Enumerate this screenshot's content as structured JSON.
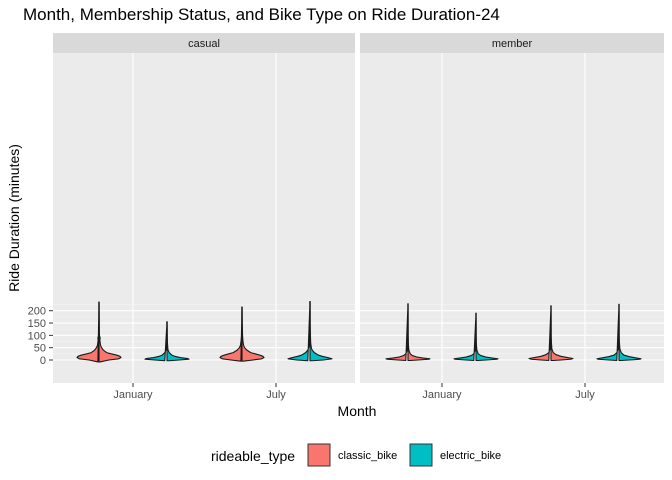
{
  "chart_data": {
    "type": "violin",
    "title": "Month, Membership Status, and Bike Type on Ride Duration-24",
    "xlabel": "Month",
    "ylabel": "Ride Duration (minutes)",
    "ylim": [
      -10,
      250
    ],
    "yticks": [
      0,
      50,
      100,
      150,
      200
    ],
    "categories": [
      "January",
      "July"
    ],
    "facets": [
      "casual",
      "member"
    ],
    "grid": true,
    "legend": {
      "title": "rideable_type",
      "position": "bottom",
      "entries": [
        {
          "label": "classic_bike",
          "color": "#F8766D"
        },
        {
          "label": "electric_bike",
          "color": "#00BFC4"
        }
      ]
    },
    "violins": [
      {
        "facet": "casual",
        "month": "January",
        "type": "classic_bike",
        "min": -8,
        "max": 235,
        "profile": [
          [
            -8,
            0.05
          ],
          [
            0,
            0.45
          ],
          [
            5,
            0.9
          ],
          [
            10,
            1.0
          ],
          [
            15,
            0.95
          ],
          [
            20,
            0.8
          ],
          [
            25,
            0.55
          ],
          [
            30,
            0.35
          ],
          [
            40,
            0.2
          ],
          [
            50,
            0.12
          ],
          [
            60,
            0.07
          ],
          [
            80,
            0.04
          ],
          [
            90,
            0.05
          ],
          [
            100,
            0.02
          ],
          [
            150,
            0.015
          ],
          [
            200,
            0.012
          ],
          [
            235,
            0.01
          ]
        ]
      },
      {
        "facet": "casual",
        "month": "January",
        "type": "electric_bike",
        "min": -3,
        "max": 155,
        "profile": [
          [
            -3,
            0.1
          ],
          [
            0,
            0.55
          ],
          [
            3,
            1.0
          ],
          [
            6,
            0.95
          ],
          [
            10,
            0.6
          ],
          [
            15,
            0.35
          ],
          [
            20,
            0.22
          ],
          [
            30,
            0.1
          ],
          [
            40,
            0.05
          ],
          [
            50,
            0.035
          ],
          [
            70,
            0.02
          ],
          [
            100,
            0.015
          ],
          [
            155,
            0.01
          ]
        ]
      },
      {
        "facet": "casual",
        "month": "July",
        "type": "classic_bike",
        "min": -5,
        "max": 215,
        "profile": [
          [
            -5,
            0.05
          ],
          [
            0,
            0.5
          ],
          [
            5,
            0.9
          ],
          [
            10,
            1.0
          ],
          [
            15,
            0.95
          ],
          [
            20,
            0.8
          ],
          [
            25,
            0.6
          ],
          [
            30,
            0.4
          ],
          [
            40,
            0.22
          ],
          [
            50,
            0.12
          ],
          [
            60,
            0.07
          ],
          [
            80,
            0.04
          ],
          [
            100,
            0.025
          ],
          [
            150,
            0.015
          ],
          [
            215,
            0.01
          ]
        ]
      },
      {
        "facet": "casual",
        "month": "July",
        "type": "electric_bike",
        "min": -3,
        "max": 237,
        "profile": [
          [
            -3,
            0.1
          ],
          [
            0,
            0.6
          ],
          [
            5,
            1.0
          ],
          [
            10,
            0.8
          ],
          [
            15,
            0.55
          ],
          [
            20,
            0.38
          ],
          [
            30,
            0.2
          ],
          [
            40,
            0.1
          ],
          [
            50,
            0.06
          ],
          [
            70,
            0.03
          ],
          [
            100,
            0.02
          ],
          [
            150,
            0.012
          ],
          [
            237,
            0.01
          ]
        ]
      },
      {
        "facet": "member",
        "month": "January",
        "type": "classic_bike",
        "min": -2,
        "max": 228,
        "profile": [
          [
            -2,
            0.1
          ],
          [
            0,
            0.45
          ],
          [
            3,
            0.95
          ],
          [
            5,
            1.0
          ],
          [
            8,
            0.7
          ],
          [
            12,
            0.4
          ],
          [
            18,
            0.2
          ],
          [
            25,
            0.1
          ],
          [
            40,
            0.04
          ],
          [
            60,
            0.02
          ],
          [
            100,
            0.012
          ],
          [
            228,
            0.008
          ]
        ]
      },
      {
        "facet": "member",
        "month": "January",
        "type": "electric_bike",
        "min": -2,
        "max": 190,
        "profile": [
          [
            -2,
            0.1
          ],
          [
            0,
            0.45
          ],
          [
            3,
            0.95
          ],
          [
            5,
            1.0
          ],
          [
            8,
            0.75
          ],
          [
            12,
            0.45
          ],
          [
            18,
            0.22
          ],
          [
            25,
            0.1
          ],
          [
            40,
            0.04
          ],
          [
            60,
            0.02
          ],
          [
            100,
            0.012
          ],
          [
            190,
            0.008
          ]
        ]
      },
      {
        "facet": "member",
        "month": "July",
        "type": "classic_bike",
        "min": -2,
        "max": 220,
        "profile": [
          [
            -2,
            0.1
          ],
          [
            0,
            0.45
          ],
          [
            3,
            0.9
          ],
          [
            6,
            1.0
          ],
          [
            10,
            0.75
          ],
          [
            15,
            0.45
          ],
          [
            22,
            0.22
          ],
          [
            30,
            0.1
          ],
          [
            45,
            0.04
          ],
          [
            70,
            0.02
          ],
          [
            100,
            0.012
          ],
          [
            220,
            0.008
          ]
        ]
      },
      {
        "facet": "member",
        "month": "July",
        "type": "electric_bike",
        "min": -2,
        "max": 226,
        "profile": [
          [
            -2,
            0.1
          ],
          [
            0,
            0.45
          ],
          [
            3,
            0.95
          ],
          [
            5,
            1.0
          ],
          [
            9,
            0.75
          ],
          [
            14,
            0.45
          ],
          [
            20,
            0.22
          ],
          [
            30,
            0.1
          ],
          [
            45,
            0.04
          ],
          [
            70,
            0.02
          ],
          [
            100,
            0.012
          ],
          [
            226,
            0.008
          ]
        ]
      }
    ]
  }
}
